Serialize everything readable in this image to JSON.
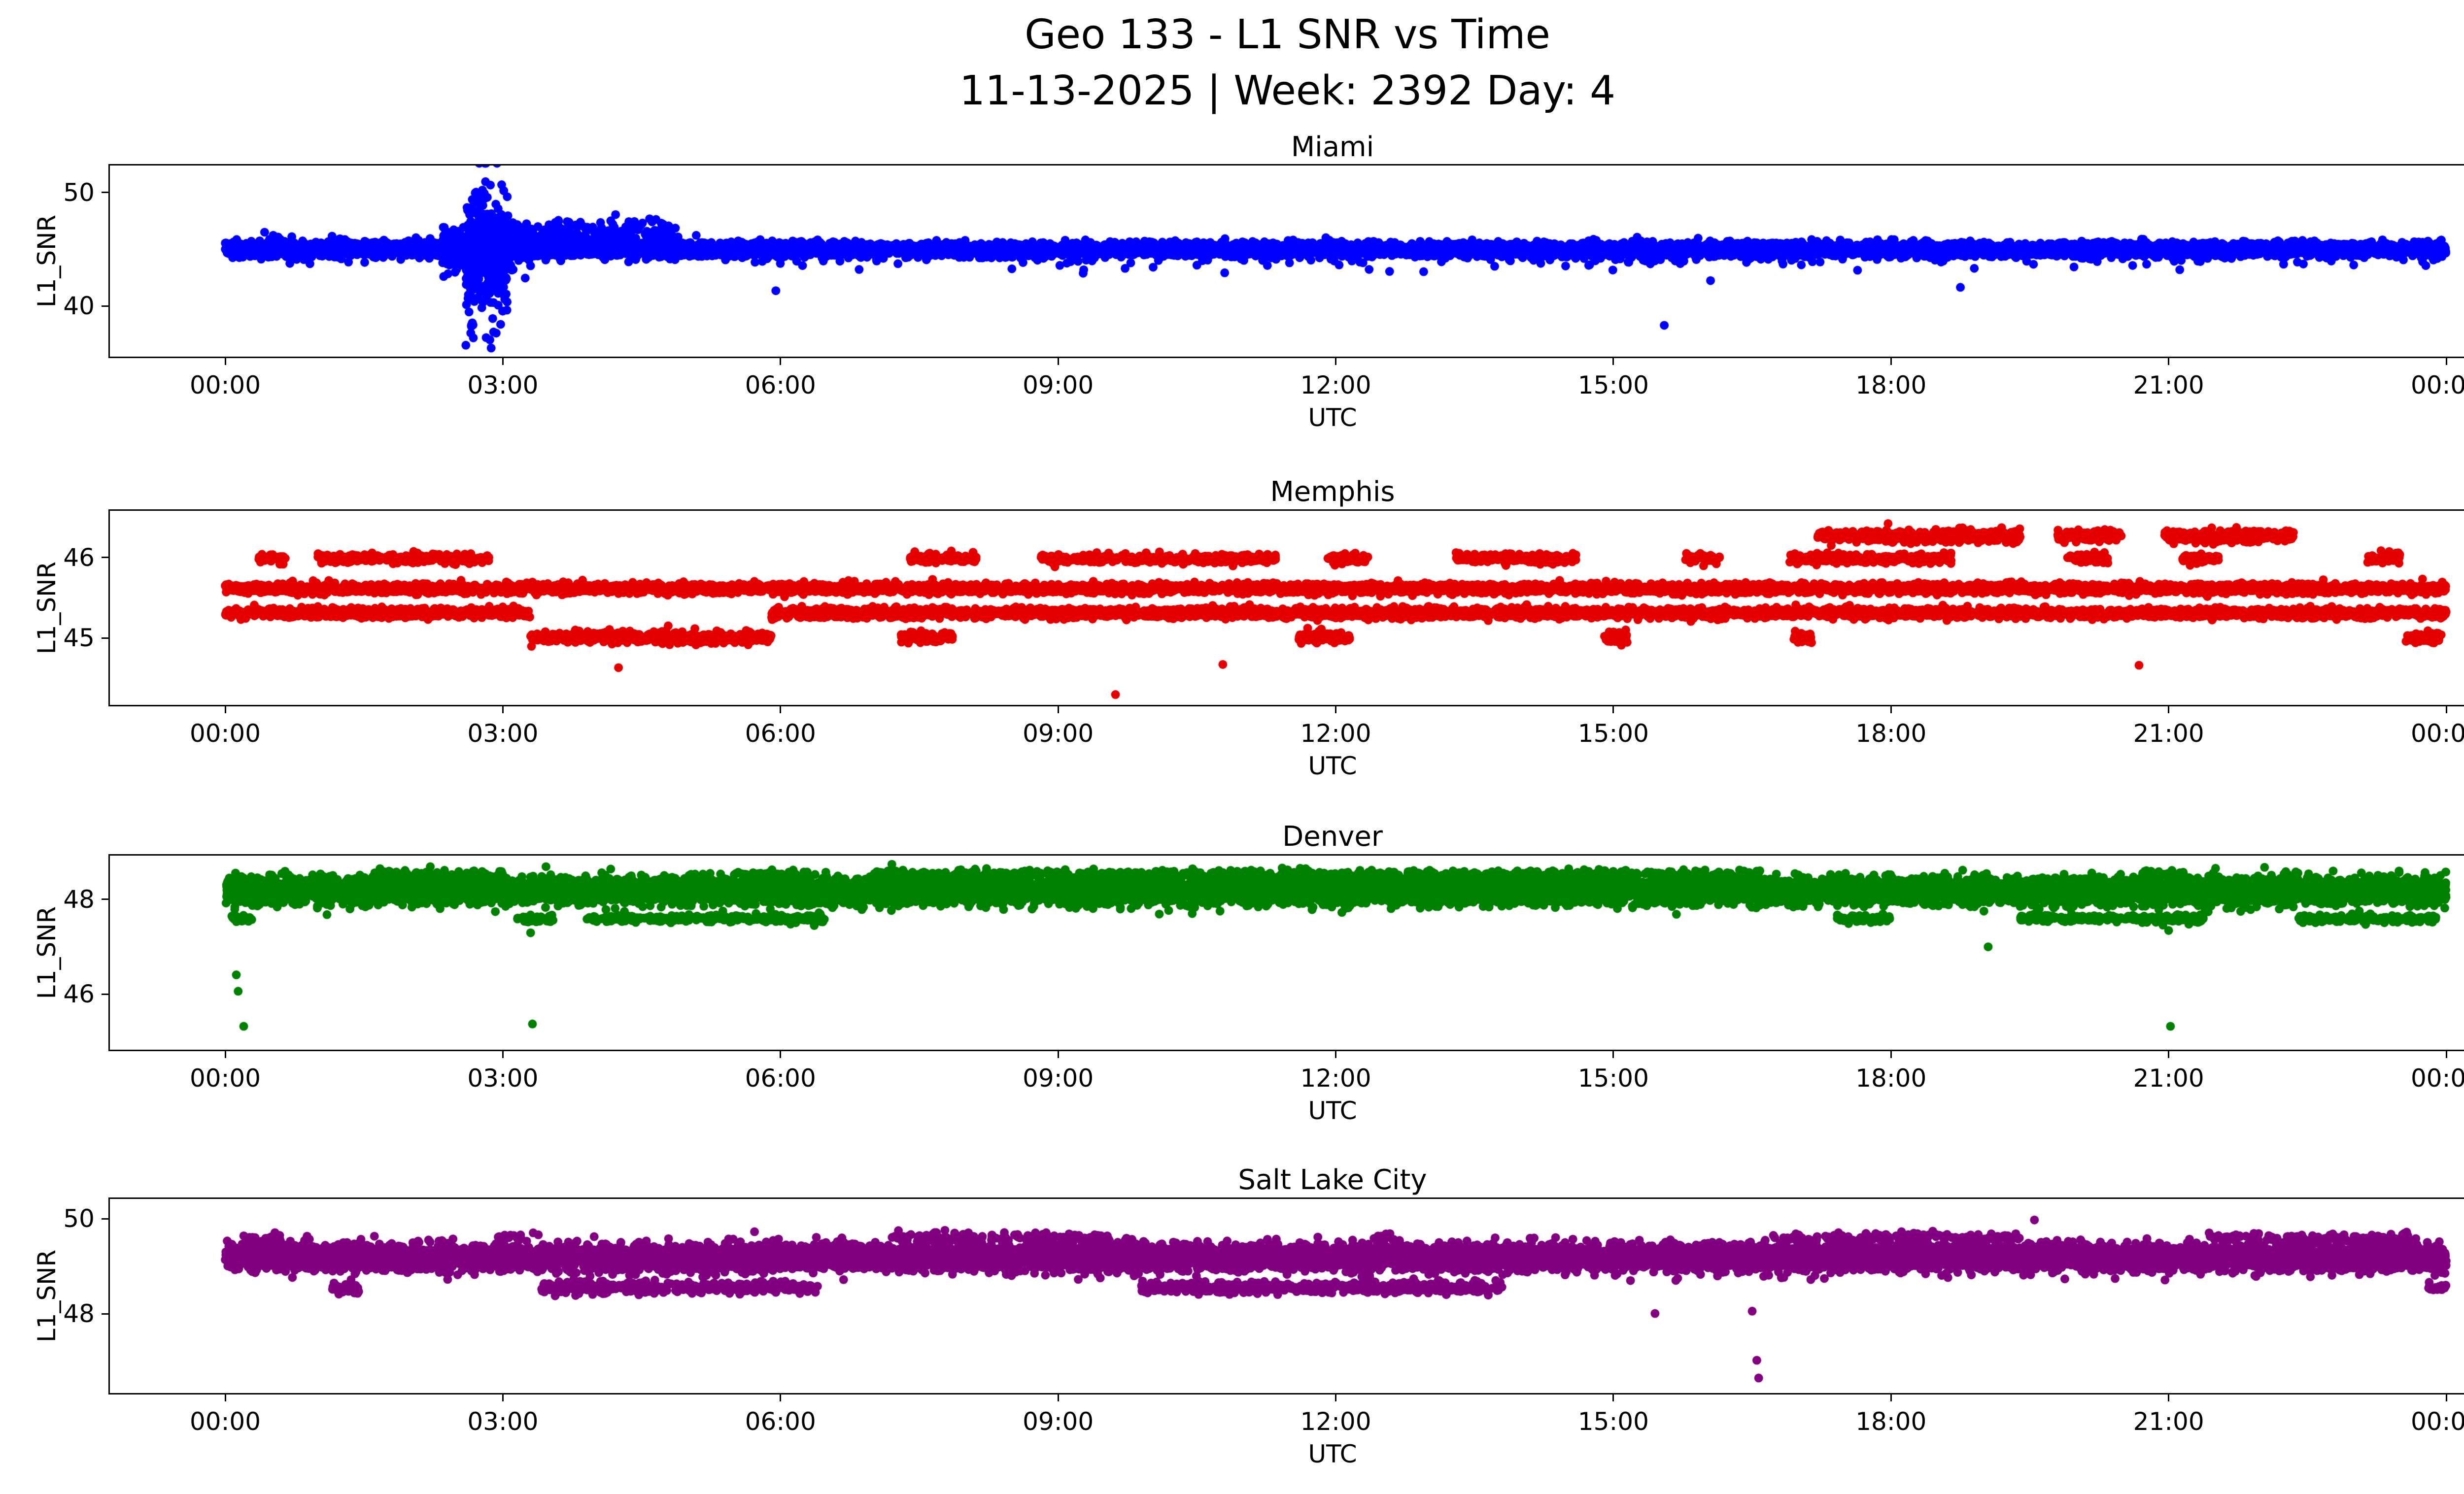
{
  "figure": {
    "title_line1": "Geo 133 - L1 SNR vs Time",
    "title_line2": "11-13-2025 | Week: 2392 Day: 4",
    "background": "#ffffff"
  },
  "chart_data": [
    {
      "type": "scatter",
      "title": "Miami",
      "color": "#0000ff",
      "xlabel": "UTC",
      "ylabel": "L1_SNR",
      "x_ticks": [
        "00:00",
        "03:00",
        "06:00",
        "09:00",
        "12:00",
        "15:00",
        "18:00",
        "21:00",
        "00:00"
      ],
      "x_tick_hours": [
        0,
        3,
        6,
        9,
        12,
        15,
        18,
        21,
        24
      ],
      "y_ticks": [
        50,
        40
      ],
      "ylim": [
        35.4,
        52.5
      ],
      "xlim_hours": [
        0,
        24
      ],
      "marker_radius": 9,
      "stripes": [
        {
          "level": 45.0,
          "jitter": 0.28,
          "density_per_hour": 520,
          "windows": [
            [
              0,
              24
            ]
          ]
        },
        {
          "level": 45.1,
          "jitter": 0.55,
          "density_per_hour": 60,
          "windows": [
            [
              0,
              2.4
            ],
            [
              3.3,
              5.5
            ]
          ]
        },
        {
          "level": 45.2,
          "jitter": 1.1,
          "density_per_hour": 300,
          "windows": [
            [
              2.35,
              3.3
            ]
          ]
        },
        {
          "level": 44.5,
          "jitter": 3.1,
          "density_per_hour": 700,
          "windows": [
            [
              2.6,
              3.05
            ]
          ]
        },
        {
          "level": 46.2,
          "jitter": 0.8,
          "density_per_hour": 120,
          "windows": [
            [
              3.05,
              4.9
            ]
          ]
        },
        {
          "level": 44.3,
          "jitter": 0.5,
          "density_per_hour": 14,
          "windows": [
            [
              5.5,
              24
            ]
          ]
        }
      ],
      "outliers": [
        [
          2.78,
          50.3
        ],
        [
          2.8,
          50.0
        ],
        [
          2.82,
          37.1
        ],
        [
          2.86,
          36.9
        ],
        [
          2.9,
          37.6
        ],
        [
          5.95,
          41.3
        ],
        [
          6.85,
          43.2
        ],
        [
          10.8,
          42.9
        ],
        [
          12.95,
          43.0
        ],
        [
          15.55,
          38.2
        ],
        [
          16.05,
          42.2
        ],
        [
          18.75,
          41.6
        ],
        [
          18.9,
          43.3
        ],
        [
          23.0,
          43.6
        ]
      ]
    },
    {
      "type": "scatter",
      "title": "Memphis",
      "color": "#e50000",
      "xlabel": "UTC",
      "ylabel": "L1_SNR",
      "x_ticks": [
        "00:00",
        "03:00",
        "06:00",
        "09:00",
        "12:00",
        "15:00",
        "18:00",
        "21:00",
        "00:00"
      ],
      "x_tick_hours": [
        0,
        3,
        6,
        9,
        12,
        15,
        18,
        21,
        24
      ],
      "y_ticks": [
        46,
        45
      ],
      "ylim": [
        44.15,
        46.6
      ],
      "xlim_hours": [
        0,
        24
      ],
      "marker_radius": 9,
      "stripes": [
        {
          "level": 45.62,
          "jitter": 0.03,
          "density_per_hour": 260,
          "windows": [
            [
              0,
              24
            ]
          ]
        },
        {
          "level": 45.31,
          "jitter": 0.03,
          "density_per_hour": 220,
          "windows": [
            [
              0,
              3.3
            ],
            [
              5.9,
              24
            ]
          ]
        },
        {
          "level": 45.0,
          "jitter": 0.035,
          "density_per_hour": 200,
          "windows": [
            [
              3.3,
              5.9
            ],
            [
              7.3,
              7.9
            ],
            [
              11.6,
              12.15
            ],
            [
              14.9,
              15.15
            ],
            [
              16.95,
              17.15
            ],
            [
              23.55,
              23.95
            ]
          ]
        },
        {
          "level": 46.0,
          "jitter": 0.03,
          "density_per_hour": 150,
          "windows": [
            [
              0.35,
              0.65
            ],
            [
              1.0,
              2.85
            ],
            [
              7.4,
              8.15
            ],
            [
              8.8,
              11.35
            ],
            [
              11.9,
              12.35
            ],
            [
              13.3,
              14.6
            ],
            [
              15.75,
              16.15
            ],
            [
              16.9,
              18.65
            ],
            [
              19.9,
              20.35
            ],
            [
              21.15,
              21.55
            ],
            [
              23.15,
              23.5
            ]
          ]
        },
        {
          "level": 46.28,
          "jitter": 0.04,
          "density_per_hour": 170,
          "windows": [
            [
              17.2,
              19.4
            ],
            [
              19.8,
              20.5
            ],
            [
              20.95,
              22.35
            ]
          ]
        }
      ],
      "outliers": [
        [
          4.25,
          44.62
        ],
        [
          10.78,
          44.66
        ],
        [
          20.68,
          44.65
        ],
        [
          9.62,
          44.28
        ]
      ]
    },
    {
      "type": "scatter",
      "title": "Denver",
      "color": "#008000",
      "xlabel": "UTC",
      "ylabel": "L1_SNR",
      "x_ticks": [
        "00:00",
        "03:00",
        "06:00",
        "09:00",
        "12:00",
        "15:00",
        "18:00",
        "21:00",
        "00:00"
      ],
      "x_tick_hours": [
        0,
        3,
        6,
        9,
        12,
        15,
        18,
        21,
        24
      ],
      "y_ticks": [
        48,
        46
      ],
      "ylim": [
        44.8,
        48.95
      ],
      "xlim_hours": [
        0,
        24
      ],
      "marker_radius": 9,
      "stripes": [
        {
          "level": 48.2,
          "jitter": 0.14,
          "density_per_hour": 520,
          "windows": [
            [
              0,
              24
            ]
          ]
        },
        {
          "level": 48.55,
          "jitter": 0.05,
          "density_per_hour": 60,
          "windows": [
            [
              1.6,
              3.0
            ],
            [
              5.5,
              6.3
            ],
            [
              7.0,
              16.6
            ],
            [
              20.8,
              21.2
            ]
          ]
        },
        {
          "level": 47.6,
          "jitter": 0.04,
          "density_per_hour": 110,
          "windows": [
            [
              0.05,
              0.3
            ],
            [
              3.15,
              3.55
            ],
            [
              3.9,
              6.5
            ],
            [
              17.4,
              18.0
            ],
            [
              19.4,
              21.4
            ],
            [
              22.4,
              23.9
            ]
          ]
        }
      ],
      "outliers": [
        [
          0.1,
          47.6
        ],
        [
          0.18,
          47.55
        ],
        [
          0.12,
          46.4
        ],
        [
          0.14,
          46.05
        ],
        [
          0.2,
          45.3
        ],
        [
          3.3,
          47.3
        ],
        [
          3.32,
          45.35
        ],
        [
          19.05,
          47.0
        ],
        [
          21.0,
          47.35
        ],
        [
          21.02,
          45.3
        ]
      ]
    },
    {
      "type": "scatter",
      "title": "Salt Lake City",
      "color": "#800080",
      "xlabel": "UTC",
      "ylabel": "L1_SNR",
      "x_ticks": [
        "00:00",
        "03:00",
        "06:00",
        "09:00",
        "12:00",
        "15:00",
        "18:00",
        "21:00",
        "00:00"
      ],
      "x_tick_hours": [
        0,
        3,
        6,
        9,
        12,
        15,
        18,
        21,
        24
      ],
      "y_ticks": [
        50,
        48
      ],
      "ylim": [
        46.3,
        50.45
      ],
      "xlim_hours": [
        0,
        24
      ],
      "marker_radius": 9,
      "stripes": [
        {
          "level": 49.2,
          "jitter": 0.14,
          "density_per_hour": 480,
          "windows": [
            [
              0,
              24
            ]
          ]
        },
        {
          "level": 49.62,
          "jitter": 0.05,
          "density_per_hour": 55,
          "windows": [
            [
              0.2,
              0.6
            ],
            [
              2.95,
              3.2
            ],
            [
              7.2,
              9.6
            ],
            [
              12.4,
              12.6
            ],
            [
              16.8,
              19.4
            ],
            [
              21.4,
              23.6
            ]
          ]
        },
        {
          "level": 48.55,
          "jitter": 0.06,
          "density_per_hour": 130,
          "windows": [
            [
              1.15,
              1.45
            ],
            [
              3.4,
              6.4
            ],
            [
              9.9,
              13.8
            ],
            [
              23.8,
              24.0
            ]
          ]
        }
      ],
      "outliers": [
        [
          15.45,
          48.0
        ],
        [
          16.5,
          48.05
        ],
        [
          16.55,
          47.0
        ],
        [
          16.57,
          46.62
        ],
        [
          19.55,
          50.0
        ],
        [
          1.3,
          48.62
        ],
        [
          23.95,
          48.6
        ]
      ]
    }
  ],
  "render": {
    "seed": 20251113
  }
}
